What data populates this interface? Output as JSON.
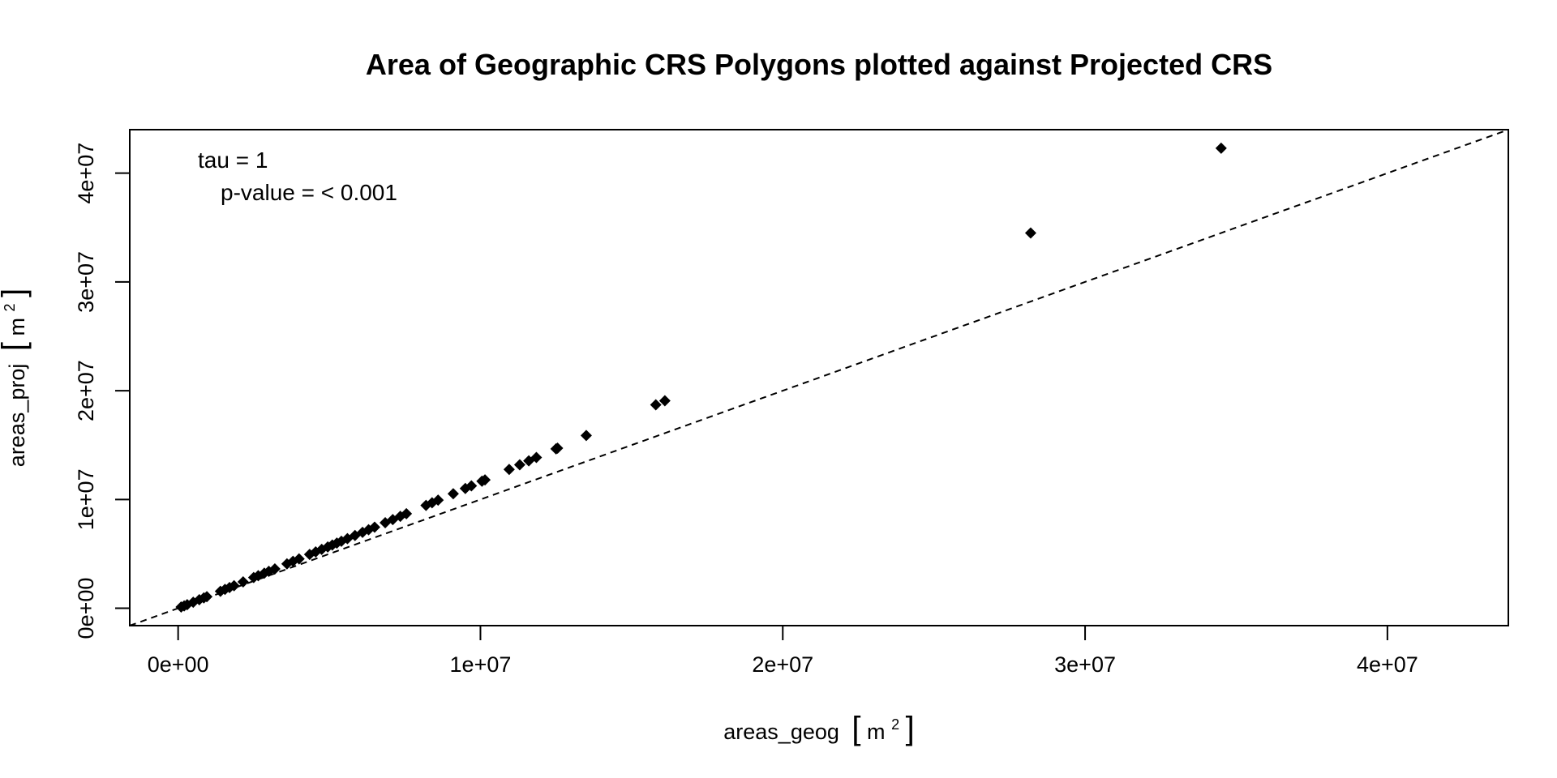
{
  "chart_data": {
    "type": "scatter",
    "title": "Area of Geographic CRS Polygons plotted against Projected CRS",
    "xlabel": {
      "text": "areas_geog",
      "unit_base": "m",
      "unit_exp": "2"
    },
    "ylabel": {
      "text": "areas_proj",
      "unit_base": "m",
      "unit_exp": "2"
    },
    "xlim": [
      -1600000,
      44000000
    ],
    "ylim": [
      -1600000,
      44000000
    ],
    "x_ticks": [
      0,
      10000000,
      20000000,
      30000000,
      40000000
    ],
    "x_tick_labels": [
      "0e+00",
      "1e+07",
      "2e+07",
      "3e+07",
      "4e+07"
    ],
    "y_ticks": [
      0,
      10000000,
      20000000,
      30000000,
      40000000
    ],
    "y_tick_labels": [
      "0e+00",
      "1e+07",
      "2e+07",
      "3e+07",
      "4e+07"
    ],
    "grid": false,
    "marker": "diamond",
    "reference_line": {
      "style": "dashed",
      "points": [
        [
          -1600000,
          -1600000
        ],
        [
          44000000,
          44000000
        ]
      ]
    },
    "annotations": {
      "tau": "tau = 1",
      "p_value": "p-value =  < 0.001"
    },
    "points": [
      [
        100000,
        110000
      ],
      [
        200000,
        220000
      ],
      [
        300000,
        330000
      ],
      [
        500000,
        550000
      ],
      [
        700000,
        780000
      ],
      [
        850000,
        950000
      ],
      [
        950000,
        1060000
      ],
      [
        1400000,
        1560000
      ],
      [
        1550000,
        1730000
      ],
      [
        1700000,
        1900000
      ],
      [
        1850000,
        2070000
      ],
      [
        2150000,
        2420000
      ],
      [
        2500000,
        2820000
      ],
      [
        2650000,
        2990000
      ],
      [
        2850000,
        3220000
      ],
      [
        3000000,
        3390000
      ],
      [
        3200000,
        3620000
      ],
      [
        3600000,
        4080000
      ],
      [
        3800000,
        4310000
      ],
      [
        4000000,
        4540000
      ],
      [
        4350000,
        4950000
      ],
      [
        4550000,
        5180000
      ],
      [
        4750000,
        5410000
      ],
      [
        4950000,
        5640000
      ],
      [
        5100000,
        5810000
      ],
      [
        5250000,
        5990000
      ],
      [
        5400000,
        6160000
      ],
      [
        5600000,
        6400000
      ],
      [
        5850000,
        6690000
      ],
      [
        6100000,
        6980000
      ],
      [
        6300000,
        7220000
      ],
      [
        6500000,
        7450000
      ],
      [
        6850000,
        7860000
      ],
      [
        7100000,
        8150000
      ],
      [
        7350000,
        8450000
      ],
      [
        7550000,
        8690000
      ],
      [
        8200000,
        9460000
      ],
      [
        8400000,
        9700000
      ],
      [
        8600000,
        9940000
      ],
      [
        9100000,
        10530000
      ],
      [
        9500000,
        11010000
      ],
      [
        9700000,
        11250000
      ],
      [
        10050000,
        11680000
      ],
      [
        10150000,
        11800000
      ],
      [
        10950000,
        12760000
      ],
      [
        11300000,
        13190000
      ],
      [
        11600000,
        13550000
      ],
      [
        11850000,
        13860000
      ],
      [
        12500000,
        14650000
      ],
      [
        12550000,
        14720000
      ],
      [
        13500000,
        15880000
      ],
      [
        15800000,
        18700000
      ],
      [
        16100000,
        19080000
      ],
      [
        28200000,
        34500000
      ],
      [
        34500000,
        42300000
      ]
    ]
  }
}
